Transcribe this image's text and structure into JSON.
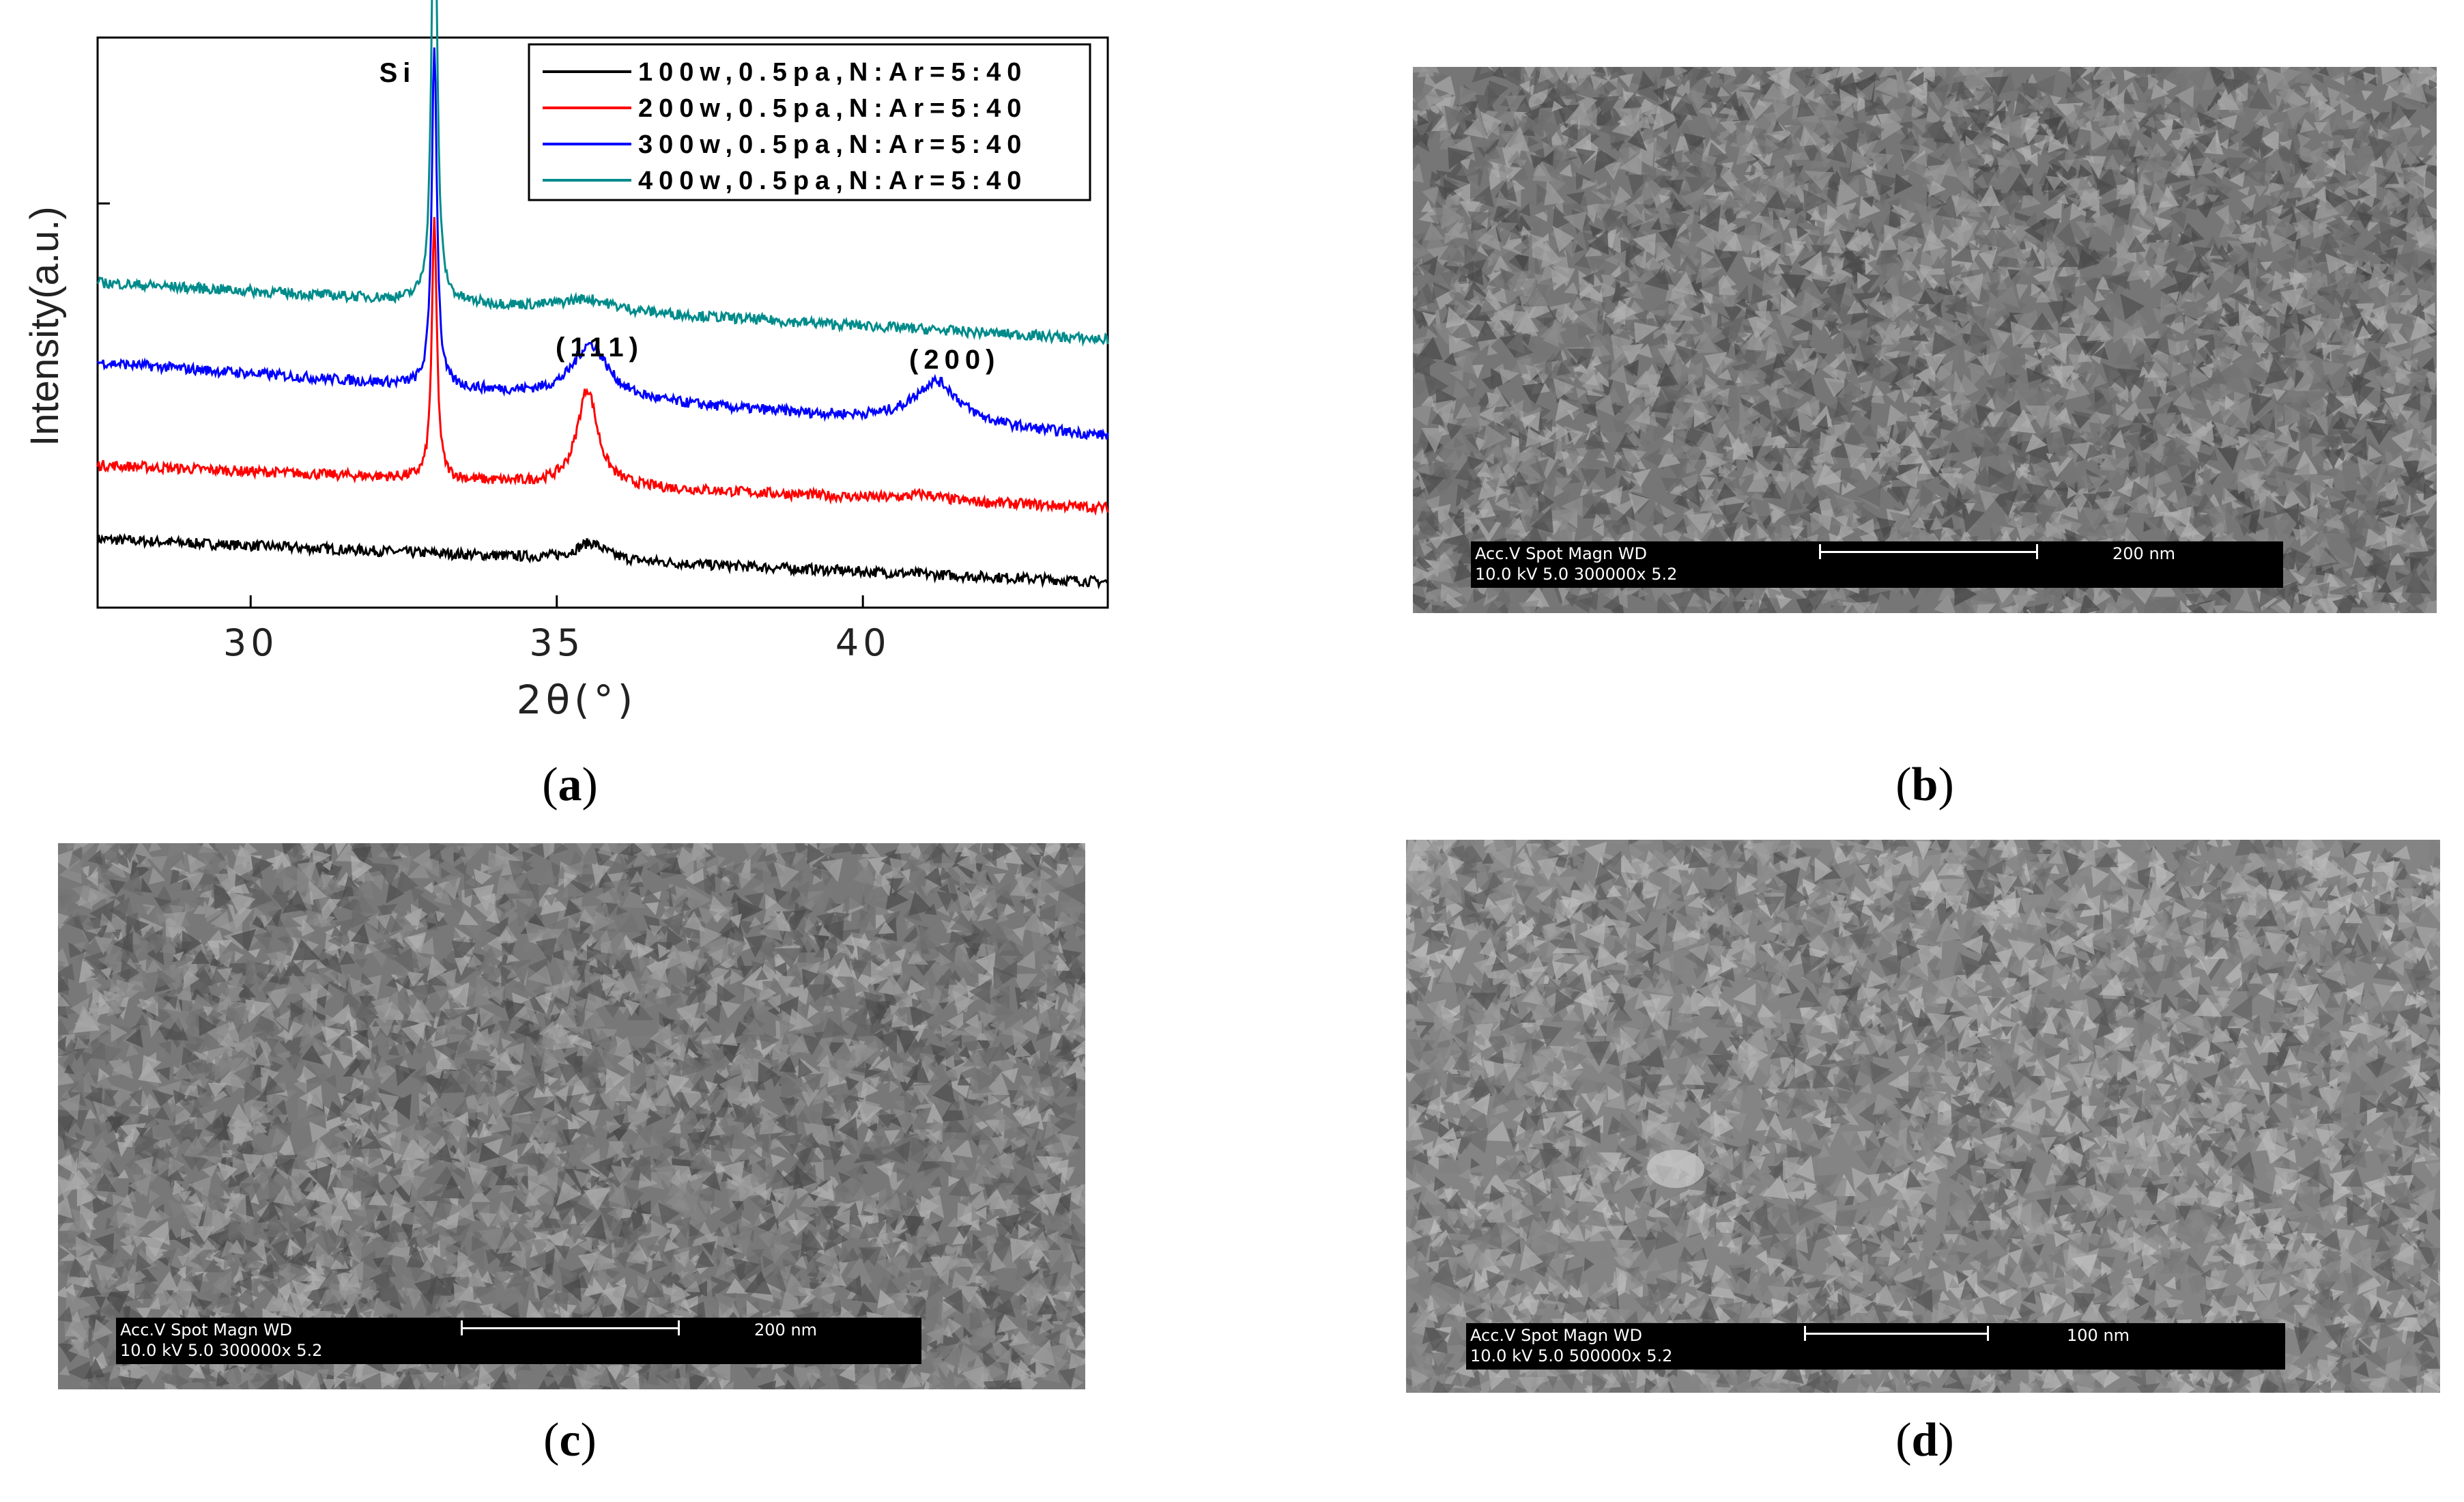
{
  "figure": {
    "panels": {
      "a": "a",
      "b": "b",
      "c": "c",
      "d": "d"
    }
  },
  "chart_data": {
    "type": "line",
    "xlabel": "2θ(°)",
    "ylabel": "Intensity(a.u.)",
    "xlim": [
      27.5,
      44
    ],
    "xticks": [
      30,
      35,
      40
    ],
    "legend_position": "top-right",
    "annotations": [
      {
        "text": "Si",
        "x": 32.4
      },
      {
        "text": "(111)",
        "x": 35.7
      },
      {
        "text": "(200)",
        "x": 41.5
      }
    ],
    "series": [
      {
        "name": "100w,0.5pa,N:Ar=5:40",
        "color": "#000000",
        "baseline_start": 0.12,
        "baseline_end": 0.045,
        "peaks": [
          {
            "x": 33.0,
            "height": 0.0,
            "width": 0.06
          },
          {
            "x": 35.55,
            "height": 0.03,
            "width": 0.3
          }
        ]
      },
      {
        "name": "200w,0.5pa,N:Ar=5:40",
        "color": "#ff0000",
        "baseline_start": 0.25,
        "baseline_end": 0.175,
        "peaks": [
          {
            "x": 33.0,
            "height": 0.45,
            "width": 0.05
          },
          {
            "x": 35.5,
            "height": 0.17,
            "width": 0.2
          },
          {
            "x": 41.0,
            "height": 0.01,
            "width": 0.3
          }
        ]
      },
      {
        "name": "300w,0.5pa,N:Ar=5:40",
        "color": "#0000ff",
        "baseline_start": 0.43,
        "baseline_end": 0.3,
        "peaks": [
          {
            "x": 33.0,
            "height": 0.6,
            "width": 0.05
          },
          {
            "x": 35.55,
            "height": 0.095,
            "width": 0.35
          },
          {
            "x": 41.2,
            "height": 0.075,
            "width": 0.45
          }
        ]
      },
      {
        "name": "400w,0.5pa,N:Ar=5:40",
        "color": "#008b8b",
        "baseline_start": 0.57,
        "baseline_end": 0.47,
        "peaks": [
          {
            "x": 33.0,
            "height": 0.85,
            "width": 0.05
          },
          {
            "x": 35.5,
            "height": 0.02,
            "width": 0.5
          }
        ]
      }
    ]
  },
  "sem_images": [
    {
      "id": "b",
      "tone": 118,
      "row1": "Acc.V   Spot  Magn      WD",
      "row2": "10.0 kV 5.0    300000x  5.2",
      "scale": "200 nm"
    },
    {
      "id": "c",
      "tone": 120,
      "row1": "Acc.V   Spot  Magn      WD",
      "row2": "10.0 kV 5.0    300000x  5.2",
      "scale": "200 nm"
    },
    {
      "id": "d",
      "tone": 132,
      "row1": "Acc.V   Spot  Magn      WD",
      "row2": "10.0 kV 5.0    500000x  5.2",
      "scale": "100 nm"
    }
  ]
}
